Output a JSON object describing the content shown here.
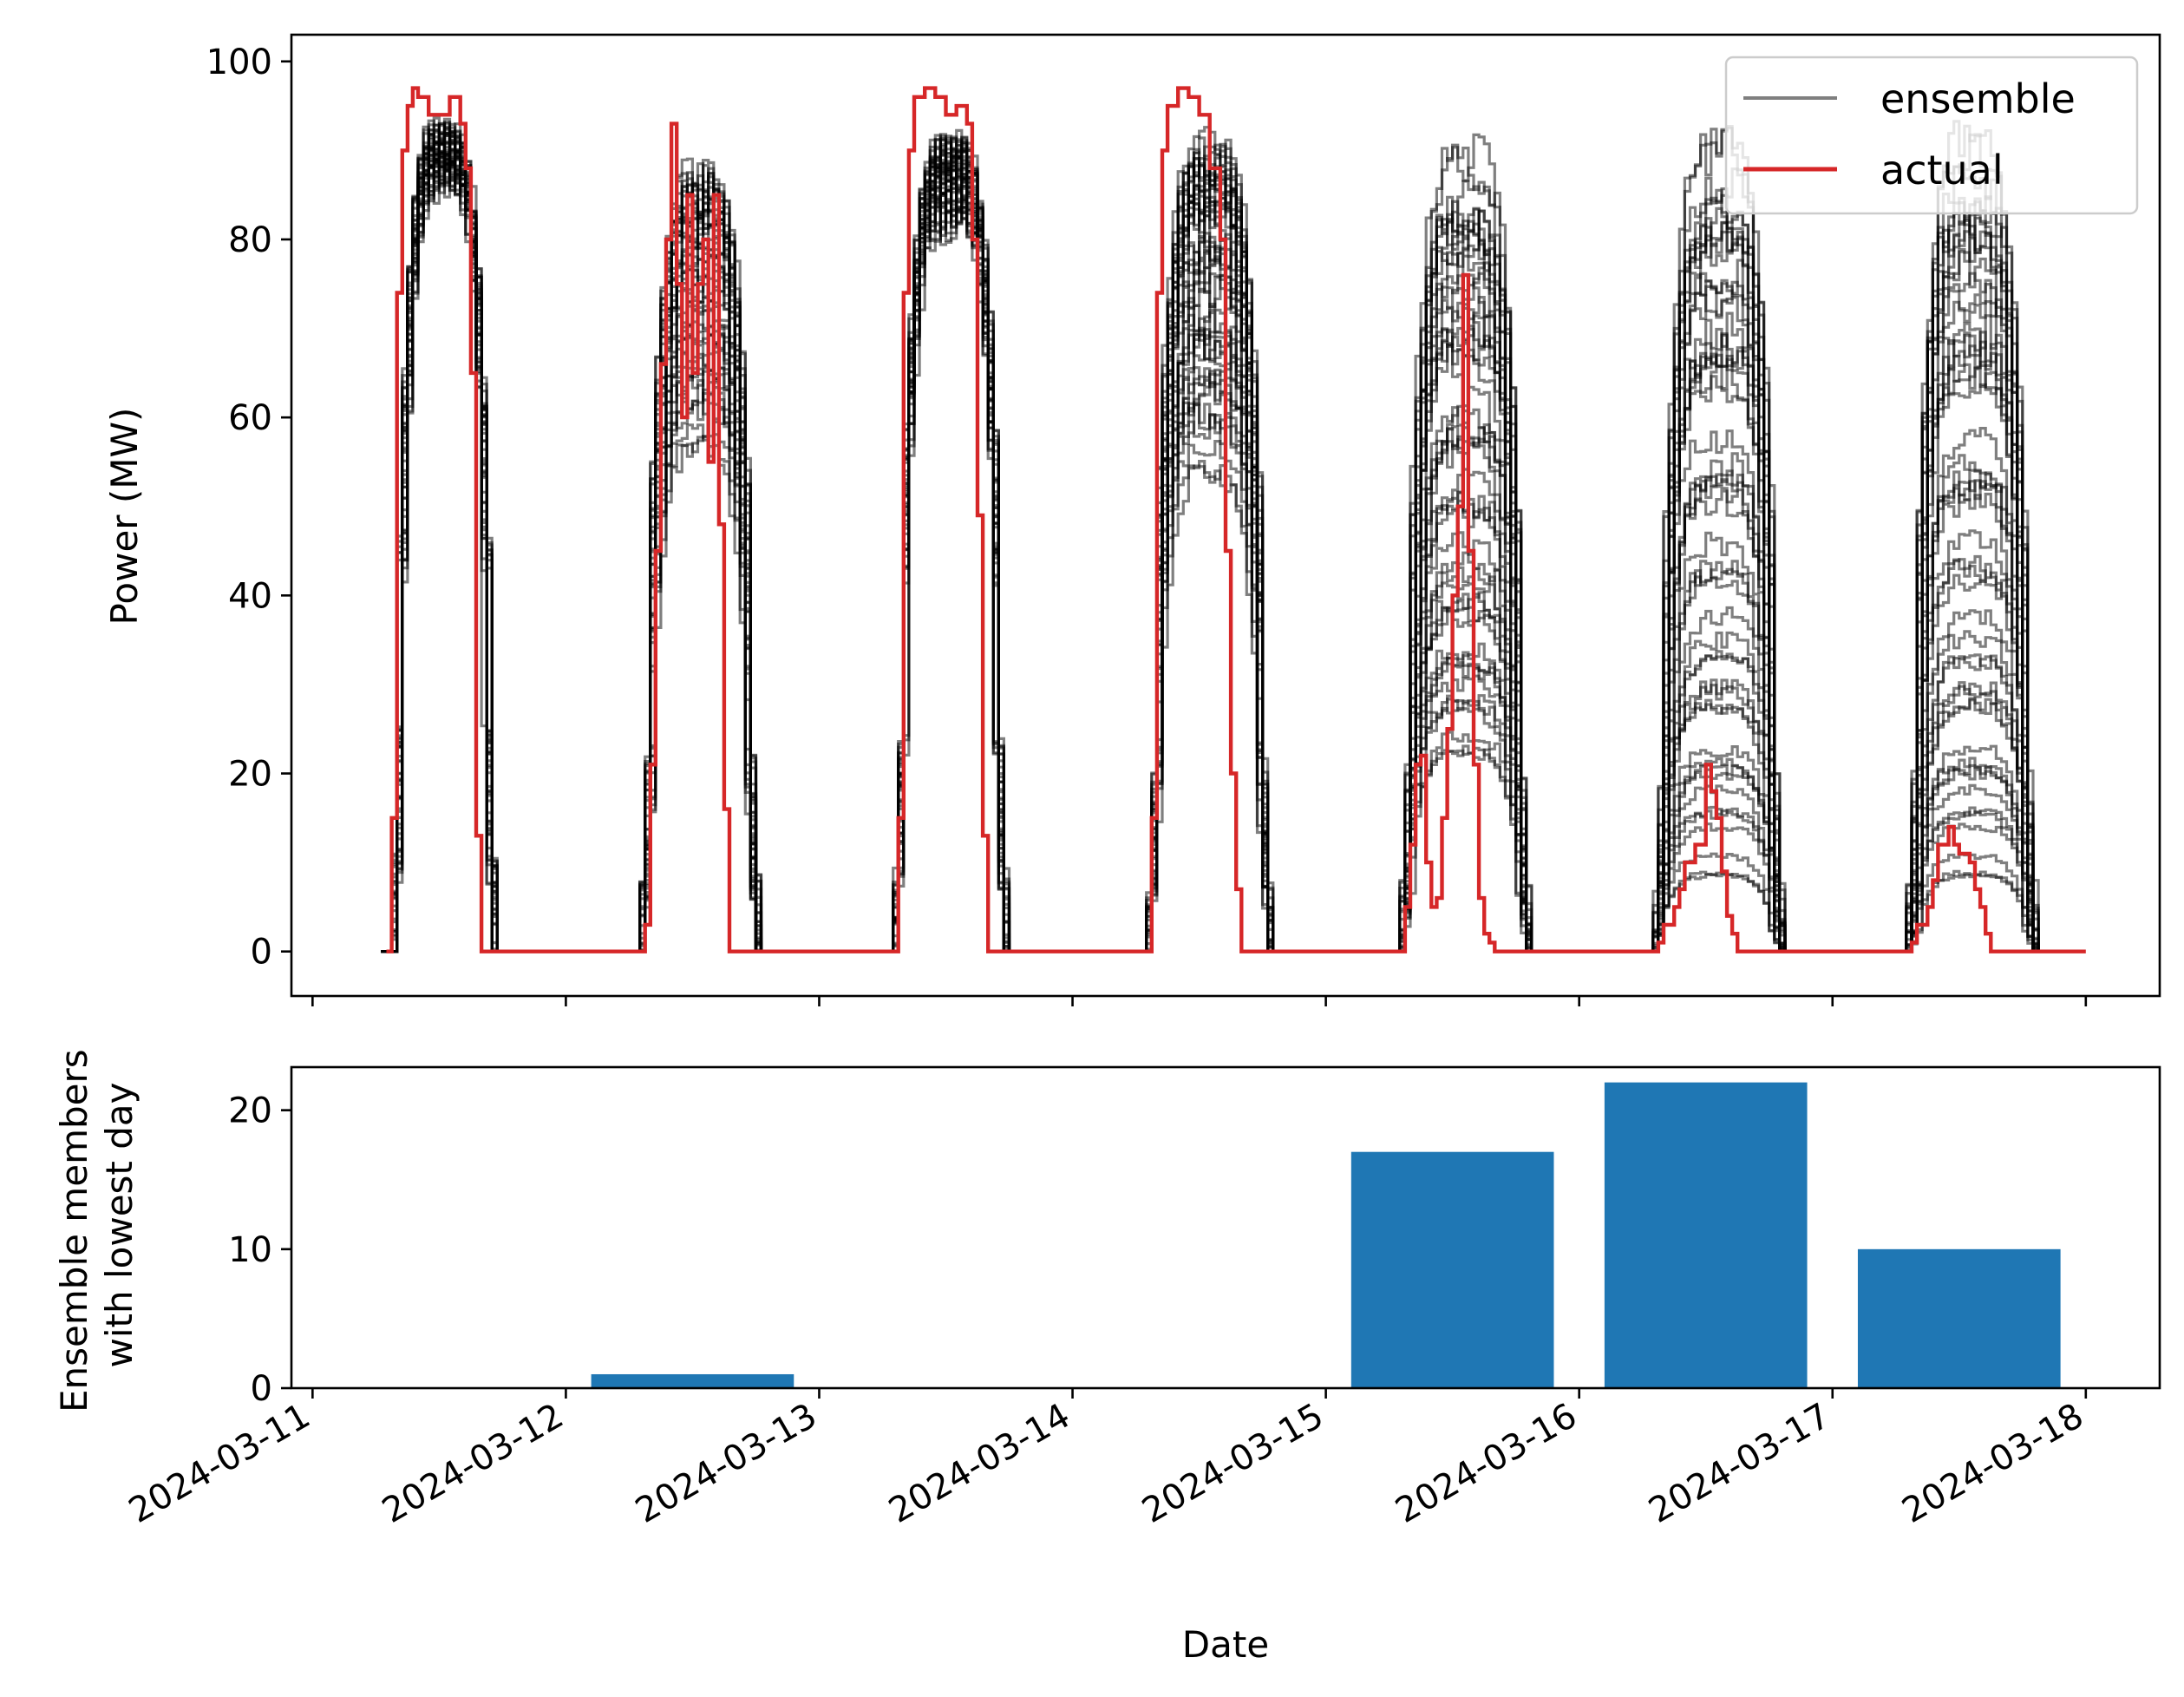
{
  "chart_data": [
    {
      "type": "line",
      "step": true,
      "xlabel": "",
      "ylabel": "Power (MW)",
      "xlim": [
        "2024-03-10T22:00",
        "2024-03-18T07:00"
      ],
      "ylim": [
        -5,
        103
      ],
      "yticks": [
        0,
        20,
        40,
        60,
        80,
        100
      ],
      "grid": false,
      "legend": {
        "placement": "top-right",
        "entries": [
          "ensemble",
          "actual"
        ]
      },
      "colors": {
        "ensemble": "#000000",
        "actual": "#d62728"
      },
      "ensemble_members": 50,
      "ensemble_envelope": [
        {
          "date": "2024-03-11",
          "rise_hour": 7.5,
          "set_hour": 17.0,
          "low_peak": 88,
          "high_peak": 94
        },
        {
          "date": "2024-03-12",
          "rise_hour": 7.0,
          "set_hour": 18.0,
          "low_peak": 50,
          "high_peak": 90
        },
        {
          "date": "2024-03-13",
          "rise_hour": 7.0,
          "set_hour": 17.5,
          "low_peak": 82,
          "high_peak": 93
        },
        {
          "date": "2024-03-14",
          "rise_hour": 7.0,
          "set_hour": 18.5,
          "low_peak": 45,
          "high_peak": 93
        },
        {
          "date": "2024-03-15",
          "rise_hour": 7.0,
          "set_hour": 19.0,
          "low_peak": 20,
          "high_peak": 92
        },
        {
          "date": "2024-03-16",
          "rise_hour": 7.0,
          "set_hour": 19.0,
          "low_peak": 5,
          "high_peak": 94
        },
        {
          "date": "2024-03-17",
          "rise_hour": 7.0,
          "set_hour": 19.0,
          "low_peak": 5,
          "high_peak": 94
        }
      ],
      "series": [
        {
          "name": "actual",
          "x": [
            "2024-03-11T07:00",
            "2024-03-11T07:30",
            "2024-03-11T08:00",
            "2024-03-11T08:30",
            "2024-03-11T09:00",
            "2024-03-11T09:30",
            "2024-03-11T10:00",
            "2024-03-11T11:00",
            "2024-03-11T12:00",
            "2024-03-11T13:00",
            "2024-03-11T14:00",
            "2024-03-11T14:30",
            "2024-03-11T15:00",
            "2024-03-11T15:30",
            "2024-03-11T16:00",
            "2024-03-11T16:30",
            "2024-03-11T17:00",
            "2024-03-12T07:00",
            "2024-03-12T07:30",
            "2024-03-12T08:00",
            "2024-03-12T08:30",
            "2024-03-12T09:00",
            "2024-03-12T09:30",
            "2024-03-12T10:00",
            "2024-03-12T10:30",
            "2024-03-12T11:00",
            "2024-03-12T11:30",
            "2024-03-12T12:00",
            "2024-03-12T12:30",
            "2024-03-12T13:00",
            "2024-03-12T13:30",
            "2024-03-12T14:00",
            "2024-03-12T14:30",
            "2024-03-12T15:00",
            "2024-03-12T15:30",
            "2024-03-12T16:00",
            "2024-03-12T16:30",
            "2024-03-12T17:00",
            "2024-03-12T17:30",
            "2024-03-12T18:00",
            "2024-03-13T07:00",
            "2024-03-13T07:30",
            "2024-03-13T08:00",
            "2024-03-13T08:30",
            "2024-03-13T09:00",
            "2024-03-13T10:00",
            "2024-03-13T11:00",
            "2024-03-13T12:00",
            "2024-03-13T13:00",
            "2024-03-13T14:00",
            "2024-03-13T14:30",
            "2024-03-13T15:00",
            "2024-03-13T15:30",
            "2024-03-13T16:00",
            "2024-03-13T16:30",
            "2024-03-13T17:00",
            "2024-03-13T17:30",
            "2024-03-14T07:00",
            "2024-03-14T07:30",
            "2024-03-14T08:00",
            "2024-03-14T08:30",
            "2024-03-14T09:00",
            "2024-03-14T10:00",
            "2024-03-14T11:00",
            "2024-03-14T12:00",
            "2024-03-14T13:00",
            "2024-03-14T14:00",
            "2024-03-14T14:30",
            "2024-03-14T15:00",
            "2024-03-14T15:30",
            "2024-03-14T16:00",
            "2024-03-14T16:30",
            "2024-03-14T17:00",
            "2024-03-14T17:30",
            "2024-03-14T18:00",
            "2024-03-14T18:30",
            "2024-03-15T07:00",
            "2024-03-15T07:30",
            "2024-03-15T08:00",
            "2024-03-15T08:30",
            "2024-03-15T09:00",
            "2024-03-15T09:30",
            "2024-03-15T10:00",
            "2024-03-15T10:30",
            "2024-03-15T11:00",
            "2024-03-15T11:30",
            "2024-03-15T12:00",
            "2024-03-15T12:30",
            "2024-03-15T13:00",
            "2024-03-15T13:30",
            "2024-03-15T14:00",
            "2024-03-15T14:30",
            "2024-03-15T15:00",
            "2024-03-15T15:30",
            "2024-03-15T16:00",
            "2024-03-15T16:30",
            "2024-03-15T17:00",
            "2024-03-15T17:30",
            "2024-03-15T18:00",
            "2024-03-15T18:30",
            "2024-03-15T19:00",
            "2024-03-16T07:00",
            "2024-03-16T07:30",
            "2024-03-16T08:00",
            "2024-03-16T09:00",
            "2024-03-16T09:30",
            "2024-03-16T10:00",
            "2024-03-16T11:00",
            "2024-03-16T12:00",
            "2024-03-16T12:30",
            "2024-03-16T13:00",
            "2024-03-16T13:30",
            "2024-03-16T14:00",
            "2024-03-16T14:30",
            "2024-03-16T15:00",
            "2024-03-16T16:00",
            "2024-03-16T16:30",
            "2024-03-16T17:00",
            "2024-03-16T18:00",
            "2024-03-16T19:00",
            "2024-03-17T07:00",
            "2024-03-17T07:30",
            "2024-03-17T08:00",
            "2024-03-17T09:00",
            "2024-03-17T09:30",
            "2024-03-17T10:00",
            "2024-03-17T11:00",
            "2024-03-17T11:30",
            "2024-03-17T12:00",
            "2024-03-17T13:00",
            "2024-03-17T13:30",
            "2024-03-17T14:00",
            "2024-03-17T14:30",
            "2024-03-17T15:00",
            "2024-03-17T16:00",
            "2024-03-17T17:00",
            "2024-03-17T18:00",
            "2024-03-17T19:00",
            "2024-03-18T00:00"
          ],
          "y": [
            0,
            15,
            74,
            90,
            95,
            97,
            96,
            94,
            94,
            96,
            93,
            88,
            65,
            13,
            0,
            0,
            0,
            0,
            3,
            21,
            45,
            66,
            80,
            93,
            75,
            60,
            85,
            65,
            75,
            80,
            55,
            85,
            48,
            16,
            0,
            0,
            0,
            0,
            0,
            0,
            0,
            15,
            74,
            90,
            96,
            97,
            96,
            94,
            95,
            93,
            80,
            49,
            13,
            0,
            0,
            0,
            0,
            0,
            15,
            74,
            90,
            95,
            97,
            96,
            94,
            88,
            80,
            45,
            20,
            7,
            0,
            0,
            0,
            0,
            0,
            0,
            0,
            5,
            12,
            21,
            22,
            10,
            5,
            6,
            15,
            25,
            40,
            50,
            76,
            45,
            21,
            6,
            2,
            1,
            0,
            0,
            0,
            0,
            0,
            0,
            0,
            0,
            1,
            3,
            5,
            7,
            10,
            12,
            21,
            18,
            15,
            9,
            4,
            2,
            0,
            0,
            0,
            0,
            0,
            0,
            0,
            1,
            3,
            5,
            8,
            12,
            14,
            12,
            11,
            10,
            7,
            5,
            2,
            0,
            0,
            0,
            0,
            0,
            0
          ]
        }
      ]
    },
    {
      "type": "bar",
      "xlabel": "Date",
      "ylabel": "Ensemble members with lowest day",
      "ylabel_lines": [
        "Ensemble members",
        "with lowest day"
      ],
      "ylim": [
        0,
        23.1
      ],
      "yticks": [
        0,
        10,
        20
      ],
      "grid": false,
      "colors": {
        "bar": "#1f77b4"
      },
      "categories": [
        "2024-03-11",
        "2024-03-12",
        "2024-03-13",
        "2024-03-14",
        "2024-03-15",
        "2024-03-16",
        "2024-03-17"
      ],
      "values": [
        0,
        1,
        0,
        0,
        17,
        22,
        10
      ],
      "xticks": [
        "2024-03-11",
        "2024-03-12",
        "2024-03-13",
        "2024-03-14",
        "2024-03-15",
        "2024-03-16",
        "2024-03-17",
        "2024-03-18"
      ]
    }
  ]
}
